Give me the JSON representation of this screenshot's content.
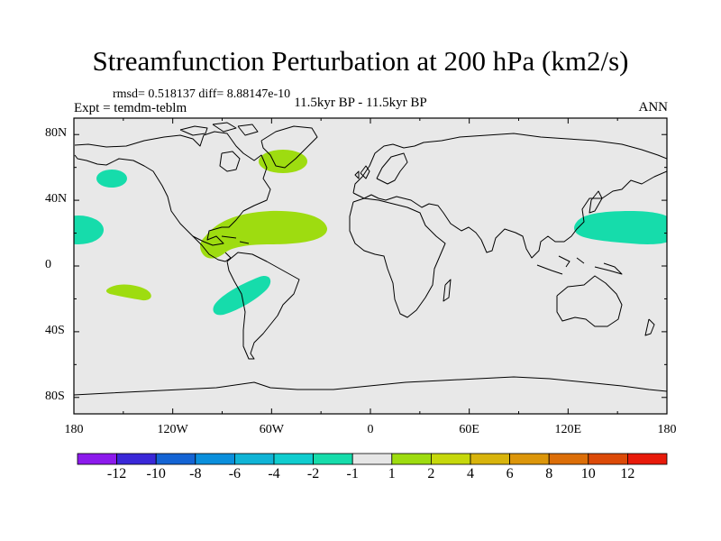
{
  "title": "Streamfunction Perturbation at 200 hPa (km2/s)",
  "stats": "rmsd= 0.518137 diff= 8.88147e-10",
  "experiment": "Expt = temdm-teblm",
  "period": "11.5kyr BP - 11.5kyr BP",
  "season": "ANN",
  "map": {
    "projection": "cylindrical equidistant",
    "lon_range": [
      -180,
      180
    ],
    "lat_range": [
      -90,
      90
    ],
    "background_color": "#e8e8e8",
    "coastline_color": "#000000",
    "lat_tick_labels": [
      "80N",
      "40N",
      "0",
      "40S",
      "80S"
    ],
    "lon_tick_labels": [
      "180",
      "120W",
      "60W",
      "0",
      "60E",
      "120E",
      "180"
    ],
    "anomaly_regions": [
      {
        "label": "North Atlantic / Greenland",
        "lon": -38,
        "lat": 68,
        "category": "1 to 2"
      },
      {
        "label": "Northeast Pacific",
        "lon": -163,
        "lat": 55,
        "category": "-2 to -1"
      },
      {
        "label": "Central Pacific north",
        "lon": -178,
        "lat": 22,
        "category": "-2 to -1"
      },
      {
        "label": "Caribbean / subtropical Atlantic",
        "lon": -70,
        "lat": 23,
        "category": "1 to 2"
      },
      {
        "label": "Central Pacific south",
        "lon": -147,
        "lat": -15,
        "category": "1 to 2"
      },
      {
        "label": "Subtropical South Atlantic",
        "lon": -57,
        "lat": -20,
        "category": "-2 to -1"
      },
      {
        "label": "Northwest Pacific",
        "lon": 150,
        "lat": 24,
        "category": "-2 to -1"
      }
    ]
  },
  "colorbar": {
    "colors": [
      "#8c1aec",
      "#3a28d8",
      "#1464d4",
      "#0a8fdc",
      "#10b4d6",
      "#10cdcf",
      "#16dcab",
      "#e6e6e6",
      "#9edc10",
      "#c6d80c",
      "#d8b40c",
      "#dc960a",
      "#dc6e08",
      "#dc4a08",
      "#e81a0a"
    ],
    "labels": [
      "-12",
      "-10",
      "-8",
      "-6",
      "-4",
      "-2",
      "-1",
      "1",
      "2",
      "4",
      "6",
      "8",
      "10",
      "12"
    ]
  }
}
